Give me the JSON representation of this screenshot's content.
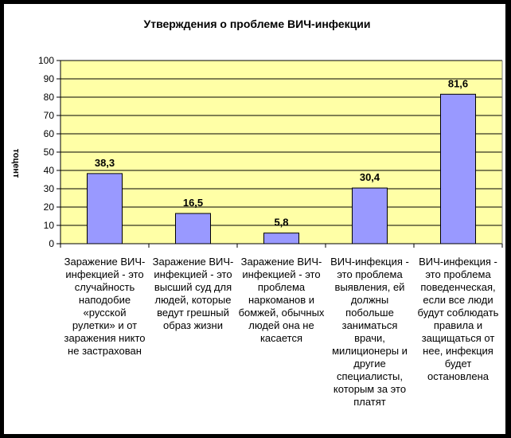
{
  "chart_data": {
    "type": "bar",
    "title": "Утверждения о проблеме ВИЧ-инфекции",
    "ylabel": "тоцент",
    "xlabel": "",
    "ylim": [
      0,
      100
    ],
    "yticks": [
      0,
      10,
      20,
      30,
      40,
      50,
      60,
      70,
      80,
      90,
      100
    ],
    "grid": true,
    "categories": [
      "Заражение ВИЧ-инфекцией - это случайность наподобие «русской рулетки» и от заражения никто не застрахован",
      "Заражение ВИЧ-инфекцией - это высший суд для людей, которые ведут грешный образ жизни",
      "Заражение ВИЧ-инфекцией - это проблема наркоманов и бомжей, обычных людей она не касается",
      "ВИЧ-инфекция - это проблема выявления, ей должны побольше заниматься врачи, милиционеры и другие специалисты, которым за это платят",
      "ВИЧ-инфекция - это проблема поведенческая, если все люди будут соблюдать правила и защищаться от нее, инфекция будет остановлена"
    ],
    "values": [
      38.3,
      16.5,
      5.8,
      30.4,
      81.6
    ],
    "data_labels": [
      "38,3",
      "16,5",
      "5,8",
      "30,4",
      "81,6"
    ],
    "colors": {
      "plot_bg": "#FFFFA6",
      "bar_fill": "#9999FF",
      "bar_stroke": "#000000"
    }
  }
}
